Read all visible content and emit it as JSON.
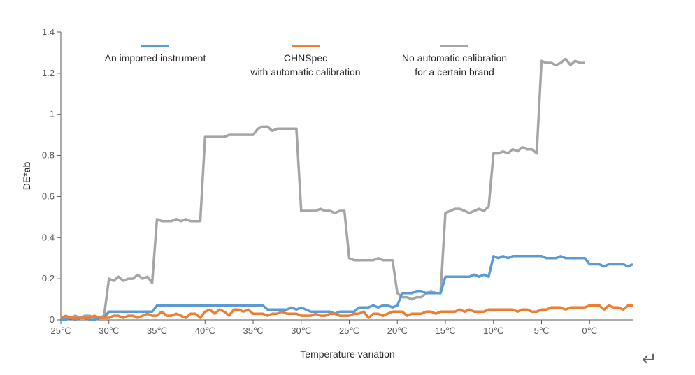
{
  "chart_data": {
    "type": "line",
    "title": "",
    "xlabel": "Temperature variation",
    "ylabel": "DE*ab",
    "ylim": [
      0,
      1.4
    ],
    "yticks": [
      0,
      0.2,
      0.4,
      0.6,
      0.8,
      1,
      1.2,
      1.4
    ],
    "ytick_labels": [
      "0",
      "0.2",
      "0.4",
      "0.6",
      "0.8",
      "1",
      "1.2",
      "1.4"
    ],
    "x_tick_labels": [
      "25℃",
      "30℃",
      "35℃",
      "40℃",
      "35℃",
      "30℃",
      "25℃",
      "20℃",
      "15℃",
      "10℃",
      "5℃",
      "0℃"
    ],
    "samples_per_tick": 10,
    "grid": false,
    "legend_position": "top",
    "series": [
      {
        "name": "An imported instrument",
        "color": "#5B9BD5",
        "values": [
          0,
          0,
          0.01,
          0,
          0.01,
          0.01,
          0,
          0,
          0.01,
          0.01,
          0.04,
          0.04,
          0.04,
          0.04,
          0.04,
          0.04,
          0.04,
          0.04,
          0.04,
          0.04,
          0.07,
          0.07,
          0.07,
          0.07,
          0.07,
          0.07,
          0.07,
          0.07,
          0.07,
          0.07,
          0.07,
          0.07,
          0.07,
          0.07,
          0.07,
          0.07,
          0.07,
          0.07,
          0.07,
          0.07,
          0.07,
          0.07,
          0.07,
          0.05,
          0.05,
          0.05,
          0.05,
          0.05,
          0.06,
          0.05,
          0.06,
          0.05,
          0.04,
          0.04,
          0.04,
          0.04,
          0.04,
          0.03,
          0.04,
          0.04,
          0.04,
          0.04,
          0.06,
          0.06,
          0.06,
          0.07,
          0.06,
          0.07,
          0.07,
          0.06,
          0.07,
          0.13,
          0.13,
          0.13,
          0.14,
          0.14,
          0.13,
          0.13,
          0.13,
          0.13,
          0.21,
          0.21,
          0.21,
          0.21,
          0.21,
          0.21,
          0.22,
          0.21,
          0.22,
          0.21,
          0.31,
          0.3,
          0.31,
          0.3,
          0.31,
          0.31,
          0.31,
          0.31,
          0.31,
          0.31,
          0.31,
          0.3,
          0.3,
          0.3,
          0.31,
          0.3,
          0.3,
          0.3,
          0.3,
          0.3,
          0.27,
          0.27,
          0.27,
          0.26,
          0.27,
          0.27,
          0.27,
          0.27,
          0.26,
          0.27
        ]
      },
      {
        "name": "CHNSpec with automatic calibration",
        "name_lines": [
          "CHNSpec",
          "with automatic calibration"
        ],
        "color": "#ED7D31",
        "values": [
          0.01,
          0.02,
          0.01,
          0.01,
          0.01,
          0.01,
          0.01,
          0.02,
          0.01,
          0.01,
          0.01,
          0.02,
          0.02,
          0.01,
          0.02,
          0.02,
          0.01,
          0.02,
          0.03,
          0.02,
          0.02,
          0.04,
          0.02,
          0.02,
          0.03,
          0.02,
          0.01,
          0.03,
          0.03,
          0.01,
          0.04,
          0.05,
          0.03,
          0.05,
          0.04,
          0.02,
          0.05,
          0.05,
          0.04,
          0.05,
          0.03,
          0.03,
          0.03,
          0.02,
          0.03,
          0.03,
          0.04,
          0.03,
          0.03,
          0.03,
          0.02,
          0.02,
          0.02,
          0.03,
          0.02,
          0.02,
          0.03,
          0.03,
          0.02,
          0.02,
          0.02,
          0.03,
          0.03,
          0.04,
          0.01,
          0.03,
          0.03,
          0.02,
          0.03,
          0.04,
          0.04,
          0.04,
          0.02,
          0.03,
          0.03,
          0.03,
          0.04,
          0.04,
          0.03,
          0.04,
          0.04,
          0.04,
          0.04,
          0.05,
          0.04,
          0.05,
          0.04,
          0.04,
          0.04,
          0.05,
          0.05,
          0.05,
          0.05,
          0.05,
          0.05,
          0.04,
          0.05,
          0.05,
          0.04,
          0.04,
          0.05,
          0.05,
          0.06,
          0.06,
          0.06,
          0.05,
          0.06,
          0.06,
          0.06,
          0.06,
          0.07,
          0.07,
          0.07,
          0.05,
          0.07,
          0.06,
          0.06,
          0.05,
          0.07,
          0.07
        ]
      },
      {
        "name": "No automatic calibration for a certain brand",
        "name_lines": [
          "No automatic calibration",
          "for a certain brand"
        ],
        "color": "#A5A5A5",
        "values": [
          0.01,
          0.01,
          0.01,
          0.02,
          0.01,
          0.02,
          0.02,
          0.01,
          0.01,
          0.02,
          0.2,
          0.19,
          0.21,
          0.19,
          0.2,
          0.2,
          0.22,
          0.2,
          0.21,
          0.18,
          0.49,
          0.48,
          0.48,
          0.48,
          0.49,
          0.48,
          0.49,
          0.48,
          0.48,
          0.48,
          0.89,
          0.89,
          0.89,
          0.89,
          0.89,
          0.9,
          0.9,
          0.9,
          0.9,
          0.9,
          0.9,
          0.93,
          0.94,
          0.94,
          0.92,
          0.93,
          0.93,
          0.93,
          0.93,
          0.93,
          0.53,
          0.53,
          0.53,
          0.53,
          0.54,
          0.53,
          0.53,
          0.52,
          0.53,
          0.53,
          0.3,
          0.29,
          0.29,
          0.29,
          0.29,
          0.29,
          0.3,
          0.29,
          0.29,
          0.29,
          0.13,
          0.11,
          0.11,
          0.1,
          0.11,
          0.11,
          0.13,
          0.14,
          0.13,
          0.13,
          0.52,
          0.53,
          0.54,
          0.54,
          0.53,
          0.52,
          0.53,
          0.54,
          0.53,
          0.55,
          0.81,
          0.81,
          0.82,
          0.81,
          0.83,
          0.82,
          0.84,
          0.83,
          0.83,
          0.81,
          1.26,
          1.25,
          1.25,
          1.24,
          1.25,
          1.27,
          1.24,
          1.26,
          1.25,
          1.25
        ]
      }
    ]
  },
  "return_symbol": "↵"
}
